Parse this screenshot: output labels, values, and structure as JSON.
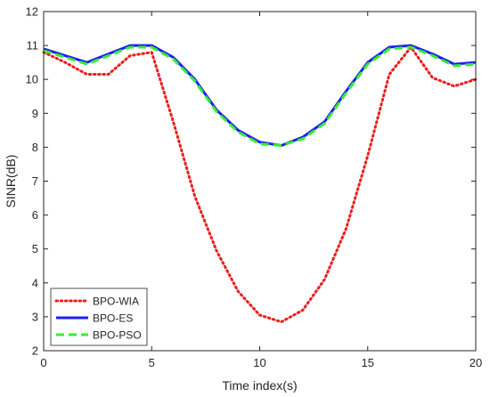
{
  "chart_data": {
    "type": "line",
    "xlabel": "Time index(s)",
    "ylabel": "SINR(dB)",
    "xlim": [
      0,
      20
    ],
    "ylim": [
      2,
      12
    ],
    "xticks": [
      0,
      5,
      10,
      15,
      20
    ],
    "yticks": [
      2,
      3,
      4,
      5,
      6,
      7,
      8,
      9,
      10,
      11,
      12
    ],
    "grid": false,
    "legend_position": "bottom-left",
    "x": [
      0,
      1,
      2,
      3,
      4,
      5,
      6,
      7,
      8,
      9,
      10,
      11,
      12,
      13,
      14,
      15,
      16,
      17,
      18,
      19,
      20
    ],
    "series": [
      {
        "name": "BPO-WIA",
        "color": "#e8201c",
        "style": "dotted",
        "values": [
          10.8,
          10.5,
          10.15,
          10.15,
          10.7,
          10.8,
          8.75,
          6.55,
          4.95,
          3.75,
          3.05,
          2.85,
          3.2,
          4.1,
          5.6,
          7.75,
          10.15,
          10.95,
          10.05,
          9.8,
          10.0
        ]
      },
      {
        "name": "BPO-ES",
        "color": "#1f1ff0",
        "style": "solid",
        "values": [
          10.9,
          10.7,
          10.5,
          10.75,
          11.0,
          11.0,
          10.65,
          10.0,
          9.1,
          8.5,
          8.15,
          8.05,
          8.3,
          8.75,
          9.65,
          10.5,
          10.95,
          11.0,
          10.75,
          10.45,
          10.5
        ]
      },
      {
        "name": "BPO-PSO",
        "color": "#33ee33",
        "style": "dashed",
        "values": [
          10.85,
          10.65,
          10.45,
          10.7,
          10.95,
          10.95,
          10.6,
          9.95,
          9.05,
          8.45,
          8.1,
          8.05,
          8.25,
          8.7,
          9.6,
          10.45,
          10.9,
          10.95,
          10.7,
          10.4,
          10.45
        ]
      }
    ]
  }
}
